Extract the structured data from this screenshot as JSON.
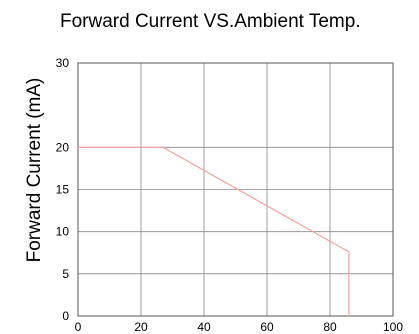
{
  "chart_data": {
    "type": "line",
    "title": "Forward Current VS.Ambient Temp.",
    "ylabel": "Forward Current (mA)",
    "xlabel": "",
    "xlim": [
      0,
      100
    ],
    "ylim": [
      0,
      30
    ],
    "x_ticks": [
      "0",
      "20",
      "40",
      "60",
      "80",
      "100"
    ],
    "y_ticks": [
      "0",
      "5",
      "10",
      "15",
      "20",
      "30"
    ],
    "y_tick_values": [
      0,
      5,
      10,
      15,
      20,
      30
    ],
    "grid": true,
    "colors": {
      "line": "#f4a0a0",
      "grid": "#888888",
      "frame": "#555555"
    },
    "series": [
      {
        "x": [
          0,
          27,
          86,
          86
        ],
        "y": [
          20,
          20,
          7.6,
          0
        ]
      }
    ]
  }
}
